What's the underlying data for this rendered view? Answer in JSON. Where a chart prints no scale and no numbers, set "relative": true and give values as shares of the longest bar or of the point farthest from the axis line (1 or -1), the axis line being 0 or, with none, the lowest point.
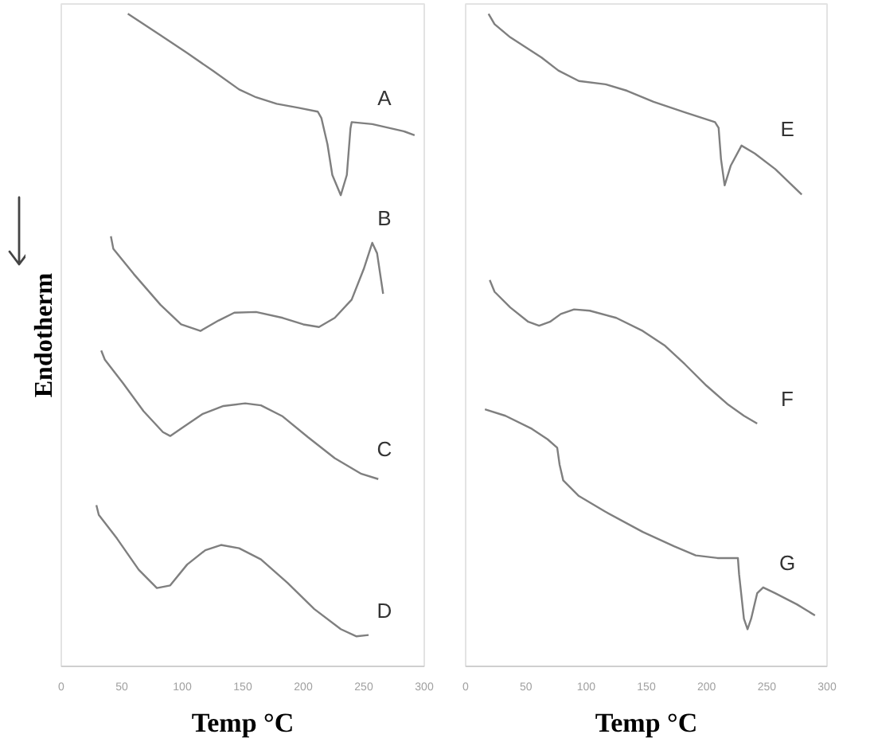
{
  "chart_data": [
    {
      "type": "line",
      "relative": true,
      "xlabel": "Temp °C",
      "ylabel": "Endotherm",
      "xlim": [
        0,
        300
      ],
      "xticks": [
        0,
        50,
        100,
        150,
        200,
        250,
        300
      ],
      "series": [
        {
          "name": "A",
          "color": "#7f7f7f",
          "x": [
            55,
            82,
            104,
            125,
            147,
            161,
            178,
            196,
            212,
            215,
            220,
            224,
            231,
            236,
            239,
            240,
            257,
            283,
            292
          ],
          "values": [
            1.0,
            0.967,
            0.94,
            0.913,
            0.884,
            0.872,
            0.862,
            0.856,
            0.85,
            0.84,
            0.8,
            0.753,
            0.722,
            0.753,
            0.824,
            0.834,
            0.831,
            0.82,
            0.814
          ]
        },
        {
          "name": "B",
          "color": "#7f7f7f",
          "x": [
            41,
            43,
            60,
            82,
            99,
            115,
            130,
            143,
            161,
            183,
            200,
            213,
            226,
            240,
            250,
            257,
            261,
            266
          ],
          "values": [
            0.659,
            0.64,
            0.601,
            0.554,
            0.524,
            0.514,
            0.53,
            0.542,
            0.543,
            0.534,
            0.524,
            0.52,
            0.534,
            0.562,
            0.609,
            0.649,
            0.633,
            0.571
          ]
        },
        {
          "name": "C",
          "color": "#7f7f7f",
          "x": [
            33,
            36,
            51,
            68,
            84,
            90,
            101,
            117,
            134,
            152,
            165,
            183,
            204,
            226,
            248,
            262
          ],
          "values": [
            0.484,
            0.47,
            0.434,
            0.391,
            0.359,
            0.353,
            0.367,
            0.387,
            0.399,
            0.403,
            0.4,
            0.383,
            0.351,
            0.319,
            0.295,
            0.287
          ]
        },
        {
          "name": "D",
          "color": "#7f7f7f",
          "x": [
            29,
            31,
            46,
            64,
            79,
            90,
            104,
            119,
            132,
            147,
            165,
            187,
            209,
            231,
            244,
            254
          ],
          "values": [
            0.247,
            0.232,
            0.196,
            0.148,
            0.12,
            0.124,
            0.156,
            0.178,
            0.186,
            0.181,
            0.164,
            0.128,
            0.088,
            0.057,
            0.046,
            0.048
          ]
        }
      ]
    },
    {
      "type": "line",
      "relative": true,
      "xlabel": "Temp °C",
      "xlim": [
        0,
        300
      ],
      "xticks": [
        0,
        50,
        100,
        150,
        200,
        250,
        300
      ],
      "series": [
        {
          "name": "E",
          "color": "#7f7f7f",
          "x": [
            19,
            24,
            37,
            63,
            77,
            94,
            116,
            134,
            156,
            182,
            207,
            210,
            212,
            215,
            220,
            229,
            240,
            257,
            279
          ],
          "values": [
            1.0,
            0.984,
            0.964,
            0.933,
            0.913,
            0.897,
            0.892,
            0.882,
            0.865,
            0.849,
            0.834,
            0.825,
            0.777,
            0.737,
            0.767,
            0.798,
            0.786,
            0.762,
            0.723
          ]
        },
        {
          "name": "F",
          "color": "#7f7f7f",
          "x": [
            20,
            24,
            37,
            52,
            61,
            70,
            79,
            90,
            103,
            125,
            147,
            165,
            182,
            200,
            218,
            231,
            242
          ],
          "values": [
            0.592,
            0.574,
            0.55,
            0.528,
            0.522,
            0.528,
            0.54,
            0.547,
            0.545,
            0.534,
            0.514,
            0.492,
            0.463,
            0.43,
            0.401,
            0.384,
            0.372
          ]
        },
        {
          "name": "G",
          "color": "#7f7f7f",
          "x": [
            16,
            33,
            55,
            68,
            76,
            78,
            81,
            94,
            116,
            147,
            173,
            191,
            209,
            226,
            227,
            231,
            234,
            237,
            242,
            247,
            257,
            275,
            290
          ],
          "values": [
            0.394,
            0.384,
            0.364,
            0.348,
            0.335,
            0.309,
            0.285,
            0.261,
            0.237,
            0.206,
            0.184,
            0.17,
            0.166,
            0.166,
            0.141,
            0.073,
            0.057,
            0.073,
            0.112,
            0.121,
            0.112,
            0.095,
            0.078
          ]
        }
      ]
    }
  ]
}
